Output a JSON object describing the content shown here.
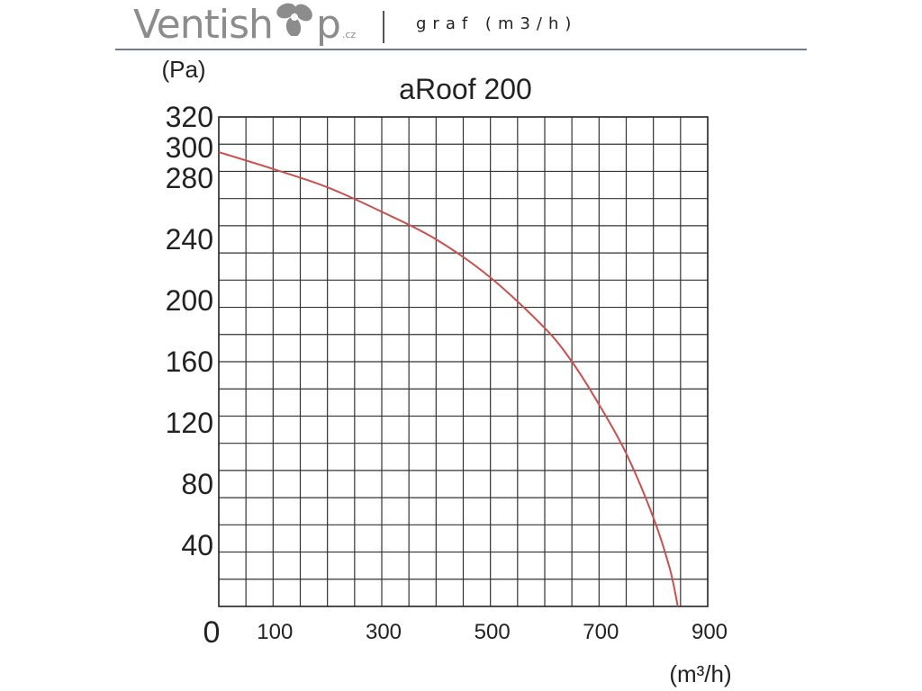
{
  "header": {
    "brand_pre": "Ventish",
    "brand_post": "p",
    "brand_tld": ".cz",
    "caption": "graf (m3/h)"
  },
  "chart_data": {
    "type": "line",
    "title": "aRoof 200",
    "ylabel": "(Pa)",
    "xlabel": "(m³/h)",
    "xlim": [
      0,
      900
    ],
    "ylim": [
      0,
      320
    ],
    "x_ticks": [
      "100",
      "300",
      "500",
      "700",
      "900"
    ],
    "y_ticks": [
      "320",
      "300",
      "280",
      "240",
      "200",
      "160",
      "120",
      "80",
      "40"
    ],
    "origin_label": "0",
    "grid": true,
    "series": [
      {
        "color": "#c8504f",
        "x": [
          0,
          100,
          200,
          300,
          400,
          500,
          600,
          650,
          700,
          750,
          800,
          830,
          845
        ],
        "y": [
          297,
          286,
          274,
          258,
          240,
          215,
          182,
          160,
          132,
          100,
          58,
          25,
          0
        ]
      }
    ]
  }
}
